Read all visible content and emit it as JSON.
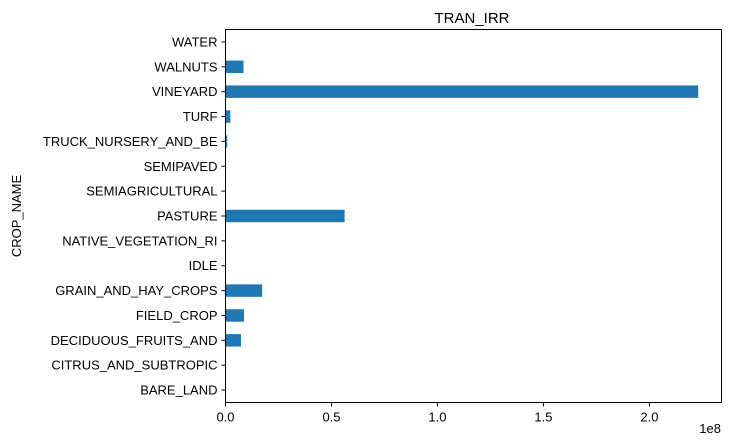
{
  "chart_data": {
    "type": "bar",
    "orientation": "horizontal",
    "title": "TRAN_IRR",
    "ylabel": "CROP_NAME",
    "xlabel": "",
    "x_scale_label": "1e8",
    "categories": [
      "BARE_LAND",
      "CITRUS_AND_SUBTROPIC",
      "DECIDUOUS_FRUITS_AND",
      "FIELD_CROP",
      "GRAIN_AND_HAY_CROPS",
      "IDLE",
      "NATIVE_VEGETATION_RI",
      "PASTURE",
      "SEMIAGRICULTURAL",
      "SEMIPAVED",
      "TRUCK_NURSERY_AND_BE",
      "TURF",
      "VINEYARD",
      "WALNUTS",
      "WATER"
    ],
    "series": [
      {
        "values": [
          0,
          0,
          7300000,
          8700000,
          17300000,
          0,
          0,
          56200000,
          0,
          0,
          800000,
          2300000,
          223000000,
          8500000,
          0
        ]
      }
    ],
    "x_ticks": [
      0,
      50000000,
      100000000,
      150000000,
      200000000
    ],
    "x_tick_labels": [
      "0.0",
      "0.5",
      "1.0",
      "1.5",
      "2.0"
    ],
    "xlim": [
      0,
      234000000
    ],
    "bar_color": "#1f77b4",
    "grid": false,
    "legend": "none"
  }
}
